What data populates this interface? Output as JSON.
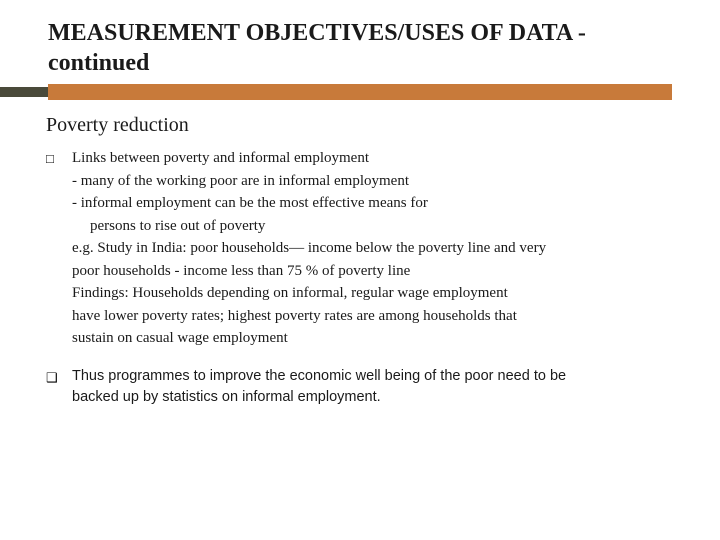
{
  "title": "MEASUREMENT OBJECTIVES/USES OF DATA - continued",
  "accent": {
    "orange": "#c87a3a",
    "dark": "#4a4a3a"
  },
  "subheading": "Poverty reduction",
  "b1": {
    "mark": "□",
    "l1": "Links between poverty and informal employment",
    "l2": "- many of the working poor  are in informal employment",
    "l3": "- informal employment  can be the most effective means for",
    "l4": "persons to rise out of poverty",
    "l5": "e.g. Study in India: poor households— income below the poverty line and very",
    "l6": "poor households -  income less than 75 % of poverty line",
    "l7": "Findings:  Households depending on informal, regular wage employment",
    "l8": "have lower poverty rates; highest poverty rates are among households that",
    "l9": " sustain on casual wage employment"
  },
  "b2": {
    "mark": "❑",
    "l1": "Thus programmes to improve the economic well being of the poor need to be",
    "l2": "backed up by statistics on informal employment."
  }
}
